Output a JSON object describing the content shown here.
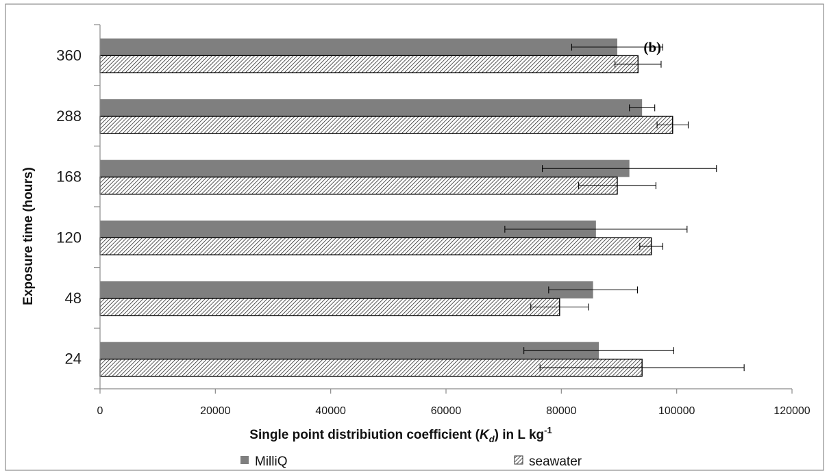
{
  "chart_data": {
    "type": "bar",
    "orientation": "horizontal",
    "panel_label": "(b)",
    "categories": [
      "24",
      "48",
      "120",
      "168",
      "288",
      "360"
    ],
    "series": [
      {
        "name": "MilliQ",
        "values": [
          86500,
          85500,
          86000,
          91800,
          94000,
          89700
        ],
        "errors": [
          13000,
          7700,
          15800,
          15100,
          2200,
          7900
        ],
        "color": "#7f7f7f",
        "pattern": "solid"
      },
      {
        "name": "seawater",
        "values": [
          94000,
          79700,
          95600,
          89700,
          99300,
          93300
        ],
        "errors": [
          17700,
          5000,
          2000,
          6700,
          2700,
          4000
        ],
        "color": "#ffffff",
        "pattern": "diagonal-hatch"
      }
    ],
    "xlim": [
      0,
      120000
    ],
    "xticks": [
      "0",
      "20000",
      "40000",
      "60000",
      "80000",
      "100000",
      "120000"
    ],
    "xtick_values": [
      0,
      20000,
      40000,
      60000,
      80000,
      100000,
      120000
    ],
    "xlabel_prefix": "Single point distribiution coefficient (",
    "xlabel_k": "K",
    "xlabel_sub": "d",
    "xlabel_mid": ") in L kg",
    "xlabel_sup": "-1",
    "ylabel": "Exposure time (hours)",
    "grid": false,
    "legend_position": "bottom"
  }
}
